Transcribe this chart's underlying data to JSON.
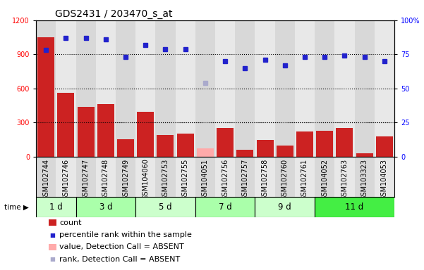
{
  "title": "GDS2431 / 203470_s_at",
  "samples": [
    "GSM102744",
    "GSM102746",
    "GSM102747",
    "GSM102748",
    "GSM102749",
    "GSM104060",
    "GSM102753",
    "GSM102755",
    "GSM104051",
    "GSM102756",
    "GSM102757",
    "GSM102758",
    "GSM102760",
    "GSM102761",
    "GSM104052",
    "GSM102763",
    "GSM103323",
    "GSM104053"
  ],
  "counts": [
    1050,
    560,
    440,
    460,
    155,
    395,
    190,
    200,
    75,
    255,
    60,
    145,
    100,
    220,
    230,
    255,
    30,
    175
  ],
  "absent_count_indices": [
    8
  ],
  "percentile_ranks": [
    78,
    87,
    87,
    86,
    73,
    82,
    79,
    79,
    54,
    70,
    65,
    71,
    67,
    73,
    73,
    74,
    73,
    70
  ],
  "absent_rank_indices": [
    8
  ],
  "time_groups": [
    {
      "label": "1 d",
      "start": 0,
      "end": 1,
      "color": "#ccffcc"
    },
    {
      "label": "3 d",
      "start": 2,
      "end": 4,
      "color": "#aaffaa"
    },
    {
      "label": "5 d",
      "start": 5,
      "end": 7,
      "color": "#ccffcc"
    },
    {
      "label": "7 d",
      "start": 8,
      "end": 10,
      "color": "#aaffaa"
    },
    {
      "label": "9 d",
      "start": 11,
      "end": 13,
      "color": "#ccffcc"
    },
    {
      "label": "11 d",
      "start": 14,
      "end": 17,
      "color": "#44ee44"
    }
  ],
  "ylim_left": [
    0,
    1200
  ],
  "ylim_right": [
    0,
    100
  ],
  "left_yticks": [
    0,
    300,
    600,
    900,
    1200
  ],
  "right_yticks": [
    0,
    25,
    50,
    75,
    100
  ],
  "bar_color": "#cc2222",
  "absent_bar_color": "#ffaaaa",
  "dot_color": "#2222cc",
  "absent_dot_color": "#aaaacc",
  "col_bg_odd": "#d8d8d8",
  "col_bg_even": "#e8e8e8",
  "title_fontsize": 10,
  "tick_fontsize": 7,
  "legend_fontsize": 8
}
